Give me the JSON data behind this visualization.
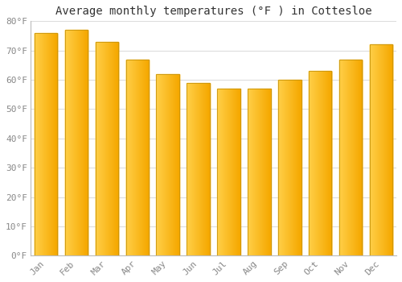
{
  "title": "Average monthly temperatures (°F ) in Cottesloe",
  "months": [
    "Jan",
    "Feb",
    "Mar",
    "Apr",
    "May",
    "Jun",
    "Jul",
    "Aug",
    "Sep",
    "Oct",
    "Nov",
    "Dec"
  ],
  "values": [
    76,
    77,
    73,
    67,
    62,
    59,
    57,
    57,
    60,
    63,
    67,
    72
  ],
  "bar_color_left": "#FFD04A",
  "bar_color_right": "#F5A800",
  "bar_edge_color": "#C8940A",
  "background_color": "#FFFFFF",
  "grid_color": "#DDDDDD",
  "ylim": [
    0,
    80
  ],
  "yticks": [
    0,
    10,
    20,
    30,
    40,
    50,
    60,
    70,
    80
  ],
  "ytick_labels": [
    "0°F",
    "10°F",
    "20°F",
    "30°F",
    "40°F",
    "50°F",
    "60°F",
    "70°F",
    "80°F"
  ],
  "title_fontsize": 10,
  "tick_fontsize": 8,
  "tick_color": "#888888",
  "spine_color": "#BBBBBB"
}
